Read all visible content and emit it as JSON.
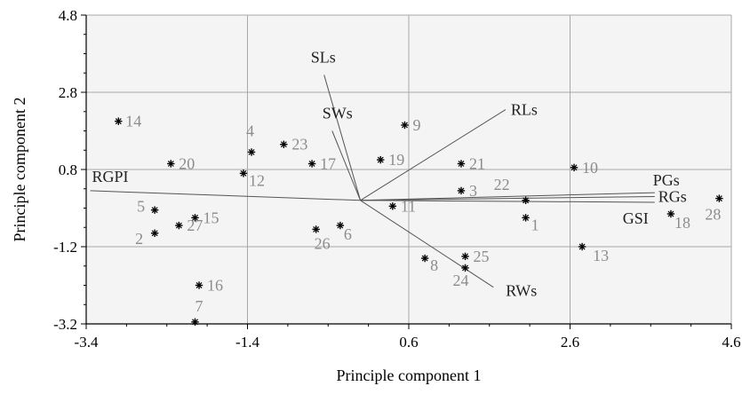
{
  "chart_data": {
    "type": "scatter",
    "subtype": "pca-biplot",
    "title": "",
    "xlabel": "Principle component 1",
    "ylabel": "Principle component 2",
    "xlim": [
      -3.4,
      4.6
    ],
    "ylim": [
      -3.2,
      4.8
    ],
    "xticks": [
      "-3.4",
      "-1.4",
      "0.6",
      "2.6",
      "4.6"
    ],
    "yticks": [
      "4.8",
      "2.8",
      "0.8",
      "-1.2",
      "-3.2"
    ],
    "grid": true,
    "colors": {
      "plot_background": "#f4f4f4",
      "grid": "#a9a9a9",
      "axis": "#000000",
      "point_label": "#8c8c8c",
      "vector": "#555555",
      "vector_label": "#222222"
    },
    "points": [
      {
        "label": "1",
        "x": 2.05,
        "y": -0.45
      },
      {
        "label": "2",
        "x": -2.55,
        "y": -0.85
      },
      {
        "label": "3",
        "x": 1.25,
        "y": 0.25
      },
      {
        "label": "4",
        "x": -1.35,
        "y": 1.25
      },
      {
        "label": "5",
        "x": -2.55,
        "y": -0.25
      },
      {
        "label": "6",
        "x": -0.25,
        "y": -0.65
      },
      {
        "label": "7",
        "x": -2.05,
        "y": -3.15
      },
      {
        "label": "8",
        "x": 0.8,
        "y": -1.5
      },
      {
        "label": "9",
        "x": 0.55,
        "y": 1.95
      },
      {
        "label": "10",
        "x": 2.65,
        "y": 0.85
      },
      {
        "label": "11",
        "x": 0.4,
        "y": -0.15
      },
      {
        "label": "12",
        "x": -1.45,
        "y": 0.7
      },
      {
        "label": "13",
        "x": 2.75,
        "y": -1.2
      },
      {
        "label": "14",
        "x": -3.0,
        "y": 2.05
      },
      {
        "label": "15",
        "x": -2.05,
        "y": -0.45
      },
      {
        "label": "16",
        "x": -2.0,
        "y": -2.2
      },
      {
        "label": "17",
        "x": -0.6,
        "y": 0.95
      },
      {
        "label": "18",
        "x": 3.85,
        "y": -0.35
      },
      {
        "label": "19",
        "x": 0.25,
        "y": 1.05
      },
      {
        "label": "20",
        "x": -2.35,
        "y": 0.95
      },
      {
        "label": "21",
        "x": 1.25,
        "y": 0.95
      },
      {
        "label": "22",
        "x": 2.05,
        "y": 0.0
      },
      {
        "label": "23",
        "x": -0.95,
        "y": 1.45
      },
      {
        "label": "24",
        "x": 1.3,
        "y": -1.75
      },
      {
        "label": "25",
        "x": 1.3,
        "y": -1.45
      },
      {
        "label": "26",
        "x": -0.55,
        "y": -0.75
      },
      {
        "label": "27",
        "x": -2.25,
        "y": -0.65
      },
      {
        "label": "28",
        "x": 4.45,
        "y": 0.05
      }
    ],
    "vectors": [
      {
        "label": "SLs",
        "x": -0.45,
        "y": 3.25
      },
      {
        "label": "SWs",
        "x": -0.35,
        "y": 1.8
      },
      {
        "label": "RLs",
        "x": 1.8,
        "y": 2.35
      },
      {
        "label": "PGs",
        "x": 3.65,
        "y": 0.2
      },
      {
        "label": "RGs",
        "x": 3.65,
        "y": 0.1
      },
      {
        "label": "GSI",
        "x": 3.65,
        "y": -0.05
      },
      {
        "label": "RWs",
        "x": 1.65,
        "y": -2.25
      },
      {
        "label": "RGPI",
        "x": -3.35,
        "y": 0.25
      }
    ]
  }
}
